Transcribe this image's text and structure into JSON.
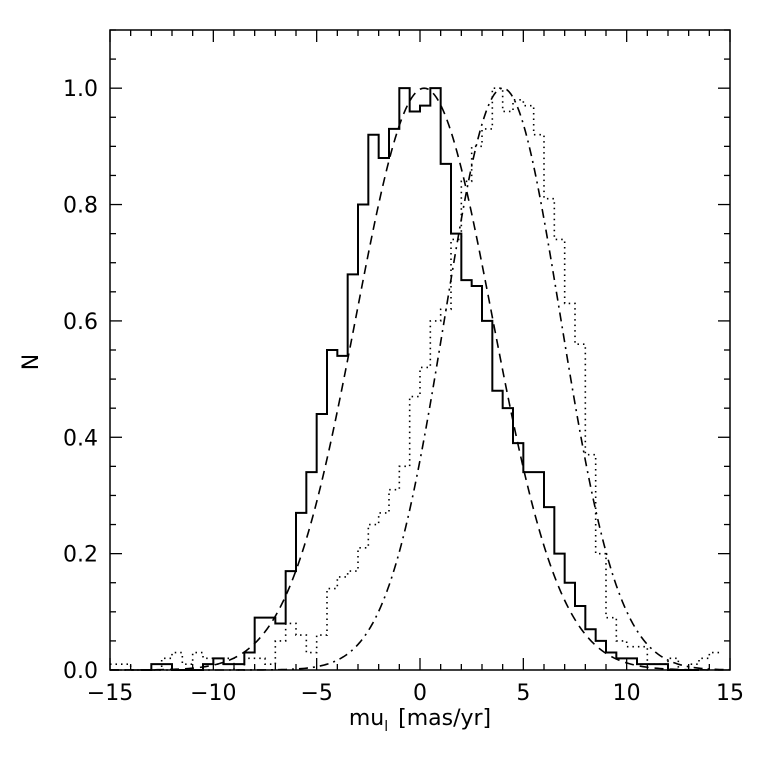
{
  "chart_data": {
    "type": "line",
    "xlabel": "mu",
    "xlabel_subscript": "l",
    "xlabel_unit": "[mas/yr]",
    "ylabel": "N",
    "xlim": [
      -15,
      15
    ],
    "ylim": [
      0,
      1.1
    ],
    "xticks": [
      -15,
      -10,
      -5,
      0,
      5,
      10,
      15
    ],
    "xtick_labels": [
      "−15",
      "−10",
      "−5",
      "0",
      "5",
      "10",
      "15"
    ],
    "yticks": [
      0.0,
      0.2,
      0.4,
      0.6,
      0.8,
      1.0
    ],
    "ytick_labels": [
      "0.0",
      "0.2",
      "0.4",
      "0.6",
      "0.8",
      "1.0"
    ],
    "grid": false,
    "legend": "none",
    "series": [
      {
        "style": "solid-histogram",
        "bin_width": 0.5,
        "bins_start": [
          -13.5,
          -13.0,
          -12.5,
          -12.0,
          -11.5,
          -11.0,
          -10.5,
          -10.0,
          -9.5,
          -9.0,
          -8.5,
          -8.0,
          -7.5,
          -7.0,
          -6.5,
          -6.0,
          -5.5,
          -5.0,
          -4.5,
          -4.0,
          -3.5,
          -3.0,
          -2.5,
          -2.0,
          -1.5,
          -1.0,
          -0.5,
          0.0,
          0.5,
          1.0,
          1.5,
          2.0,
          2.5,
          3.0,
          3.5,
          4.0,
          4.5,
          5.0,
          5.5,
          6.0,
          6.5,
          7.0,
          7.5,
          8.0,
          8.5,
          9.0,
          9.5,
          10.0,
          10.5,
          11.0,
          11.5,
          12.0,
          12.5,
          13.0
        ],
        "values": [
          0.0,
          0.01,
          0.01,
          0.0,
          0.0,
          0.0,
          0.01,
          0.02,
          0.01,
          0.01,
          0.03,
          0.09,
          0.09,
          0.08,
          0.17,
          0.27,
          0.34,
          0.44,
          0.55,
          0.54,
          0.68,
          0.8,
          0.92,
          0.88,
          0.93,
          1.0,
          0.96,
          0.97,
          1.0,
          0.87,
          0.75,
          0.67,
          0.66,
          0.6,
          0.48,
          0.45,
          0.39,
          0.34,
          0.34,
          0.28,
          0.2,
          0.15,
          0.11,
          0.07,
          0.05,
          0.03,
          0.02,
          0.02,
          0.01,
          0.01,
          0.01,
          0.0,
          0.0,
          0.0
        ]
      },
      {
        "style": "dotted-histogram",
        "bin_width": 0.5,
        "bins_start": [
          -15.0,
          -14.5,
          -14.0,
          -13.5,
          -13.0,
          -12.5,
          -12.0,
          -11.5,
          -11.0,
          -10.5,
          -10.0,
          -9.5,
          -9.0,
          -8.5,
          -8.0,
          -7.5,
          -7.0,
          -6.5,
          -6.0,
          -5.5,
          -5.0,
          -4.5,
          -4.0,
          -3.5,
          -3.0,
          -2.5,
          -2.0,
          -1.5,
          -1.0,
          -0.5,
          0.0,
          0.5,
          1.0,
          1.5,
          2.0,
          2.5,
          3.0,
          3.5,
          4.0,
          4.5,
          5.0,
          5.5,
          6.0,
          6.5,
          7.0,
          7.5,
          8.0,
          8.5,
          9.0,
          9.5,
          10.0,
          10.5,
          11.0,
          11.5,
          12.0,
          12.5,
          13.0,
          13.5,
          14.0
        ],
        "values": [
          0.01,
          0.01,
          0.0,
          0.0,
          0.0,
          0.02,
          0.03,
          0.01,
          0.03,
          0.02,
          0.01,
          0.02,
          0.0,
          0.02,
          0.02,
          0.01,
          0.05,
          0.08,
          0.06,
          0.03,
          0.06,
          0.14,
          0.16,
          0.17,
          0.21,
          0.25,
          0.27,
          0.31,
          0.35,
          0.47,
          0.52,
          0.6,
          0.62,
          0.74,
          0.84,
          0.9,
          0.93,
          1.0,
          0.96,
          0.98,
          0.97,
          0.92,
          0.81,
          0.74,
          0.63,
          0.56,
          0.37,
          0.2,
          0.09,
          0.05,
          0.04,
          0.04,
          0.01,
          0.01,
          0.02,
          0.0,
          0.01,
          0.02,
          0.03
        ]
      },
      {
        "style": "dashed",
        "kind": "gaussian",
        "amplitude": 1.0,
        "mean": 0.2,
        "sigma": 3.3
      },
      {
        "style": "dash-dot",
        "kind": "gaussian",
        "amplitude": 1.0,
        "mean": 4.0,
        "sigma": 2.8
      }
    ]
  }
}
